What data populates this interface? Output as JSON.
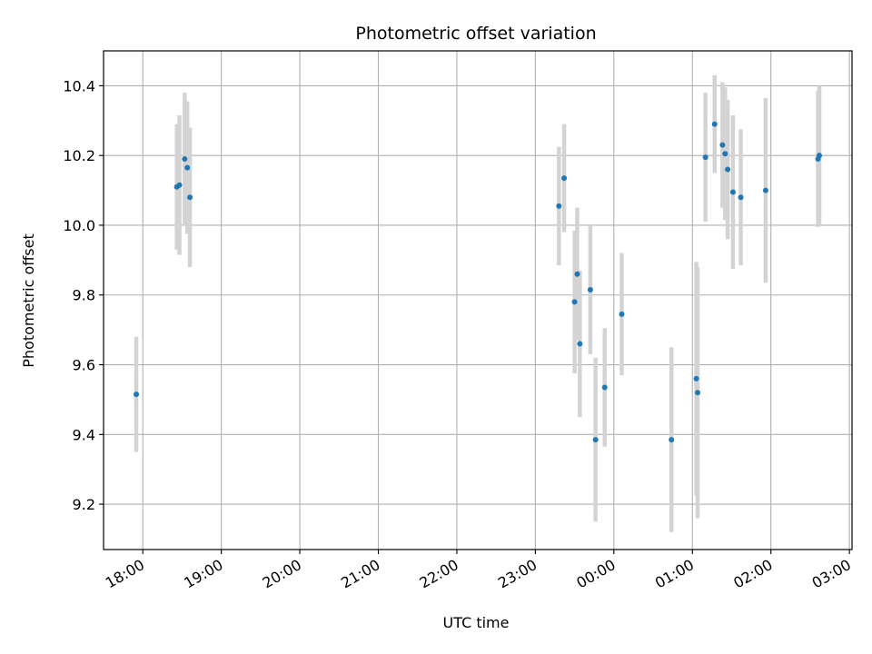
{
  "chart_data": {
    "type": "scatter",
    "title": "Photometric offset variation",
    "xlabel": "UTC time",
    "ylabel": "Photometric offset",
    "grid": true,
    "x_ticks": [
      {
        "t": "18:00",
        "label": "18:00"
      },
      {
        "t": "19:00",
        "label": "19:00"
      },
      {
        "t": "20:00",
        "label": "20:00"
      },
      {
        "t": "21:00",
        "label": "21:00"
      },
      {
        "t": "22:00",
        "label": "22:00"
      },
      {
        "t": "23:00",
        "label": "23:00"
      },
      {
        "t": "00:00",
        "label": "00:00"
      },
      {
        "t": "01:00",
        "label": "01:00"
      },
      {
        "t": "02:00",
        "label": "02:00"
      },
      {
        "t": "03:00",
        "label": "03:00"
      }
    ],
    "y_ticks": [
      9.2,
      9.4,
      9.6,
      9.8,
      10.0,
      10.2,
      10.4
    ],
    "y_tick_labels": [
      "9.2",
      "9.4",
      "9.6",
      "9.8",
      "10.0",
      "10.2",
      "10.4"
    ],
    "xlim": [
      "17:30",
      "03:02"
    ],
    "ylim": [
      9.07,
      10.5
    ],
    "colors": {
      "point": "#1f77b4",
      "errorbar": "#d3d3d3",
      "grid": "#b0b0b0"
    },
    "points": [
      {
        "t": "17:55",
        "y": 9.515,
        "yerr": 0.165
      },
      {
        "t": "18:26",
        "y": 10.11,
        "yerr": 0.18
      },
      {
        "t": "18:28",
        "y": 10.115,
        "yerr": 0.2
      },
      {
        "t": "18:32",
        "y": 10.19,
        "yerr": 0.19
      },
      {
        "t": "18:34",
        "y": 10.165,
        "yerr": 0.19
      },
      {
        "t": "18:36",
        "y": 10.08,
        "yerr": 0.2
      },
      {
        "t": "23:18",
        "y": 10.055,
        "yerr": 0.17
      },
      {
        "t": "23:22",
        "y": 10.135,
        "yerr": 0.155
      },
      {
        "t": "23:30",
        "y": 9.78,
        "yerr": 0.205
      },
      {
        "t": "23:32",
        "y": 9.86,
        "yerr": 0.19
      },
      {
        "t": "23:34",
        "y": 9.66,
        "yerr": 0.21
      },
      {
        "t": "23:42",
        "y": 9.815,
        "yerr": 0.185
      },
      {
        "t": "23:46",
        "y": 9.385,
        "yerr": 0.235
      },
      {
        "t": "23:53",
        "y": 9.535,
        "yerr": 0.17
      },
      {
        "t": "00:06",
        "y": 9.745,
        "yerr": 0.175
      },
      {
        "t": "00:44",
        "y": 9.385,
        "yerr": 0.265
      },
      {
        "t": "01:03",
        "y": 9.56,
        "yerr": 0.335
      },
      {
        "t": "01:04",
        "y": 9.52,
        "yerr": 0.36
      },
      {
        "t": "01:10",
        "y": 10.195,
        "yerr": 0.185
      },
      {
        "t": "01:17",
        "y": 10.29,
        "yerr": 0.14
      },
      {
        "t": "01:23",
        "y": 10.23,
        "yerr": 0.18
      },
      {
        "t": "01:25",
        "y": 10.205,
        "yerr": 0.19
      },
      {
        "t": "01:27",
        "y": 10.16,
        "yerr": 0.2
      },
      {
        "t": "01:31",
        "y": 10.095,
        "yerr": 0.22
      },
      {
        "t": "01:37",
        "y": 10.08,
        "yerr": 0.195
      },
      {
        "t": "01:56",
        "y": 10.1,
        "yerr": 0.265
      },
      {
        "t": "02:36",
        "y": 10.19,
        "yerr": 0.195
      },
      {
        "t": "02:37",
        "y": 10.2,
        "yerr": 0.2
      }
    ]
  }
}
